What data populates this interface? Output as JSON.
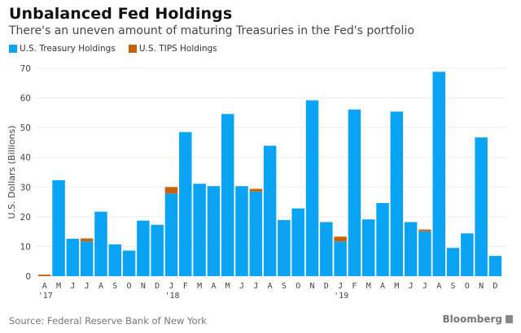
{
  "chart_data": {
    "type": "bar",
    "stacked": true,
    "title": "Unbalanced Fed Holdings",
    "subtitle": "There's an uneven amount of maturing Treasuries in the Fed's portfolio",
    "xlabel": "",
    "ylabel": "U.S. Dollars (Billions)",
    "ylim": [
      0,
      70
    ],
    "yticks": [
      0,
      10,
      20,
      30,
      40,
      50,
      60,
      70
    ],
    "grid": true,
    "legend_position": "top-left",
    "categories": [
      "A",
      "M",
      "J",
      "J",
      "A",
      "S",
      "O",
      "N",
      "D",
      "J",
      "F",
      "M",
      "A",
      "M",
      "J",
      "J",
      "A",
      "S",
      "O",
      "N",
      "D",
      "J",
      "F",
      "M",
      "A",
      "M",
      "J",
      "J",
      "A",
      "S",
      "O",
      "N",
      "D"
    ],
    "year_labels": [
      {
        "index": 0,
        "label": "'17"
      },
      {
        "index": 9,
        "label": "'18"
      },
      {
        "index": 21,
        "label": "'19"
      }
    ],
    "series": [
      {
        "name": "U.S. Treasury Holdings",
        "color": "#0ba3f4",
        "values": [
          0,
          32.3,
          12.6,
          11.7,
          21.7,
          10.7,
          8.6,
          18.7,
          17.3,
          27.8,
          48.5,
          31.1,
          30.3,
          54.6,
          30.3,
          28.5,
          43.9,
          18.9,
          22.8,
          59.2,
          18.2,
          11.7,
          56.1,
          19.1,
          24.6,
          55.4,
          18.2,
          15.1,
          68.8,
          9.5,
          14.4,
          46.7,
          6.8
        ]
      },
      {
        "name": "U.S. TIPS Holdings",
        "color": "#c8620b",
        "values": [
          0.5,
          0,
          0,
          1.0,
          0,
          0,
          0,
          0,
          0,
          2.2,
          0,
          0,
          0,
          0,
          0,
          0.9,
          0,
          0,
          0,
          0,
          0,
          1.6,
          0,
          0,
          0,
          0,
          0,
          0.6,
          0,
          0,
          0,
          0,
          0
        ]
      }
    ]
  },
  "footer": {
    "source": "Source: Federal Reserve Bank of New York",
    "brand": "Bloomberg"
  }
}
